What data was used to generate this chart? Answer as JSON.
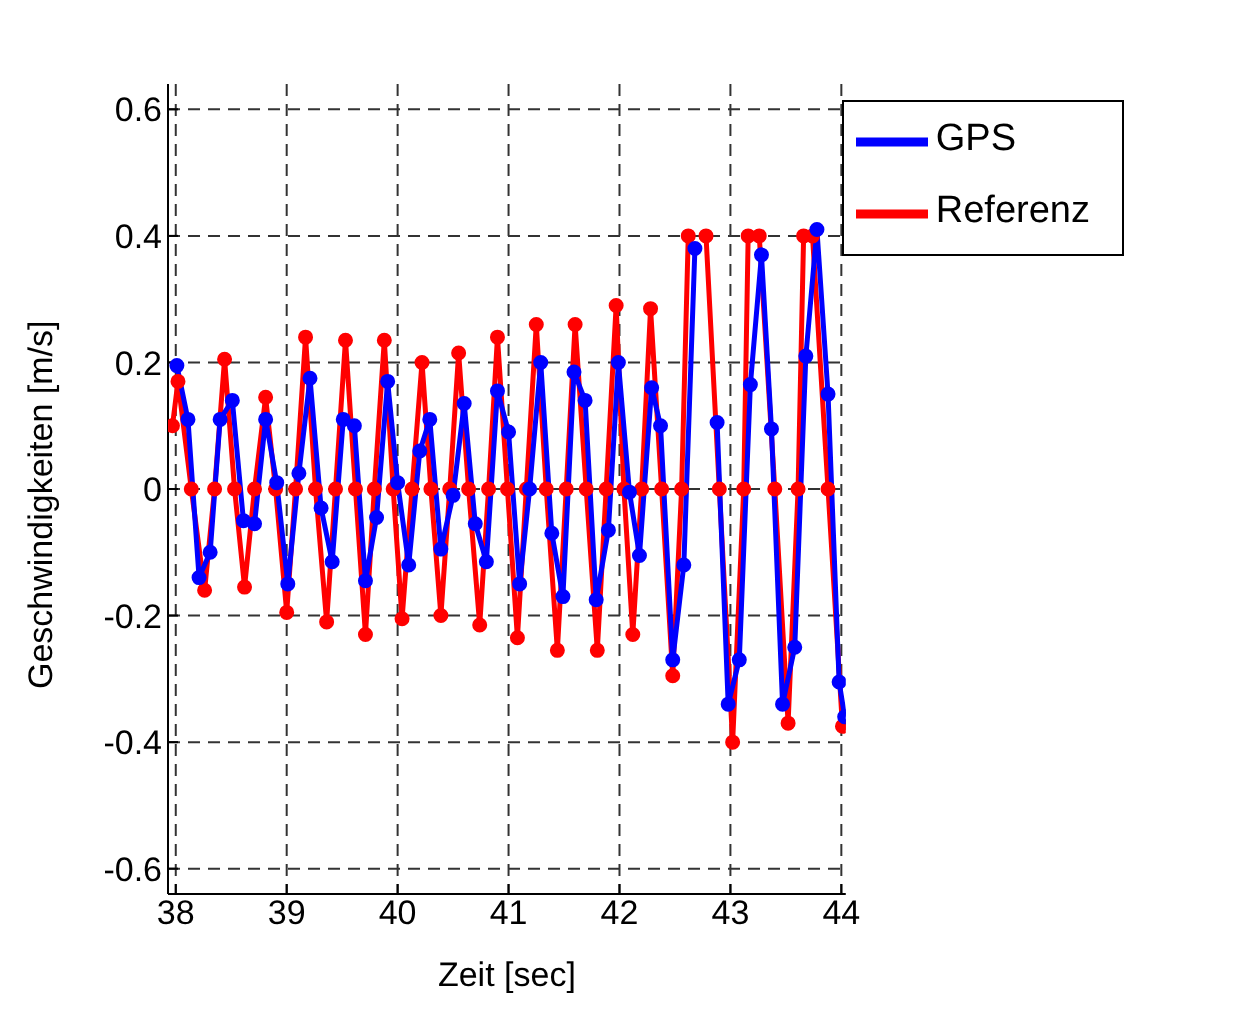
{
  "chart_data": {
    "type": "line",
    "xlabel": "Zeit [sec]",
    "ylabel": "Geschwindigkeiten [m/s]",
    "xlim": [
      37.93,
      44.04
    ],
    "xticks": [
      38,
      39,
      40,
      41,
      42,
      43,
      44
    ],
    "ylim": [
      -0.64,
      0.64
    ],
    "yticks": [
      -0.6,
      -0.4,
      -0.2,
      0,
      0.2,
      0.4,
      0.6
    ],
    "grid": true,
    "legend": "top right",
    "marker": "circle",
    "line_style": "solid",
    "series": [
      {
        "name": "Referenz",
        "color": "#ff0000",
        "x": [
          37.97,
          38.02,
          38.14,
          38.26,
          38.35,
          38.44,
          38.53,
          38.62,
          38.71,
          38.81,
          38.9,
          39.0,
          39.08,
          39.17,
          39.26,
          39.36,
          39.44,
          39.53,
          39.62,
          39.71,
          39.79,
          39.88,
          39.96,
          40.04,
          40.13,
          40.22,
          40.3,
          40.39,
          40.47,
          40.55,
          40.64,
          40.74,
          40.82,
          40.9,
          40.99,
          41.08,
          41.16,
          41.25,
          41.34,
          41.44,
          41.52,
          41.6,
          41.7,
          41.8,
          41.88,
          41.97,
          42.04,
          42.12,
          42.2,
          42.28,
          42.38,
          42.48,
          42.56,
          42.62,
          42.7,
          42.78,
          42.9,
          43.02,
          43.12,
          43.16,
          43.21,
          43.26,
          43.4,
          43.52,
          43.61,
          43.66,
          43.7,
          43.74,
          43.88,
          44.01
        ],
        "values": [
          0.1,
          0.17,
          0,
          -0.16,
          0,
          0.205,
          0,
          -0.155,
          0,
          0.145,
          0,
          -0.195,
          0,
          0.24,
          0,
          -0.21,
          0,
          0.235,
          0,
          -0.23,
          0,
          0.235,
          0,
          -0.205,
          0,
          0.2,
          0,
          -0.2,
          0,
          0.215,
          0,
          -0.215,
          0,
          0.24,
          0,
          -0.235,
          0,
          0.26,
          0,
          -0.255,
          0,
          0.26,
          0,
          -0.255,
          0,
          0.29,
          0,
          -0.23,
          0,
          0.285,
          0,
          -0.295,
          0,
          0.4,
          null,
          0.4,
          0,
          -0.4,
          0,
          0.4,
          null,
          0.4,
          0,
          -0.37,
          0,
          0.4,
          null,
          0.4,
          0,
          -0.375
        ]
      },
      {
        "name": "GPS",
        "color": "#0000ff",
        "x": [
          38.01,
          38.11,
          38.21,
          38.31,
          38.4,
          38.51,
          38.61,
          38.71,
          38.81,
          38.91,
          39.01,
          39.11,
          39.21,
          39.31,
          39.41,
          39.51,
          39.61,
          39.71,
          39.81,
          39.91,
          40.0,
          40.1,
          40.2,
          40.29,
          40.39,
          40.5,
          40.6,
          40.7,
          40.8,
          40.9,
          41.0,
          41.1,
          41.19,
          41.29,
          41.39,
          41.49,
          41.59,
          41.69,
          41.79,
          41.9,
          41.99,
          42.09,
          42.18,
          42.29,
          42.37,
          42.48,
          42.58,
          42.68,
          42.78,
          42.88,
          42.98,
          43.08,
          43.18,
          43.28,
          43.37,
          43.47,
          43.58,
          43.68,
          43.78,
          43.88,
          43.98,
          44.03
        ],
        "values": [
          0.195,
          0.11,
          -0.14,
          -0.1,
          0.11,
          0.14,
          -0.05,
          -0.055,
          0.11,
          0.01,
          -0.15,
          0.025,
          0.175,
          -0.03,
          -0.115,
          0.11,
          0.1,
          -0.145,
          -0.045,
          0.17,
          0.01,
          -0.12,
          0.06,
          0.11,
          -0.095,
          -0.01,
          0.135,
          -0.055,
          -0.115,
          0.155,
          0.09,
          -0.15,
          0.0,
          0.2,
          -0.07,
          -0.17,
          0.185,
          0.14,
          -0.175,
          -0.065,
          0.2,
          -0.005,
          -0.105,
          0.16,
          0.1,
          -0.27,
          -0.12,
          0.38,
          null,
          0.105,
          -0.34,
          -0.27,
          0.165,
          0.37,
          0.095,
          -0.34,
          -0.25,
          0.21,
          0.41,
          0.15,
          -0.305,
          -0.36
        ]
      }
    ]
  }
}
